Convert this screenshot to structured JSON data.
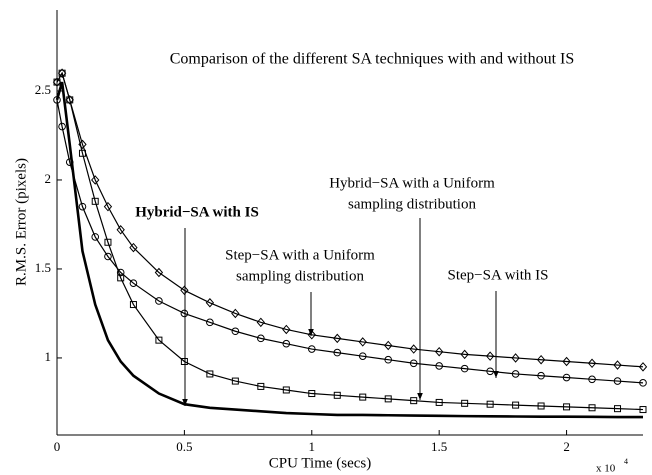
{
  "chart_data": {
    "type": "line",
    "title": "Comparison of the different SA techniques with and without IS",
    "x_label": "CPU Time (secs)",
    "y_label": "R.M.S. Error (pixels)",
    "x_multiplier": "x 10",
    "x_multiplier_exponent": "4",
    "x": [
      0,
      0.02,
      0.05,
      0.1,
      0.15,
      0.2,
      0.25,
      0.3,
      0.4,
      0.5,
      0.6,
      0.7,
      0.8,
      0.9,
      1.0,
      1.1,
      1.2,
      1.3,
      1.4,
      1.5,
      1.6,
      1.7,
      1.8,
      1.9,
      2.0,
      2.1,
      2.2,
      2.3
    ],
    "series": [
      {
        "name": "Hybrid−SA with IS",
        "color": "#000000",
        "marker": "none",
        "width": 2.6,
        "values": [
          2.45,
          2.55,
          2.2,
          1.6,
          1.3,
          1.1,
          0.98,
          0.9,
          0.8,
          0.74,
          0.72,
          0.71,
          0.7,
          0.69,
          0.685,
          0.68,
          0.68,
          0.678,
          0.676,
          0.675,
          0.673,
          0.672,
          0.671,
          0.67,
          0.67,
          0.669,
          0.668,
          0.668
        ]
      },
      {
        "name": "Step−SA with a Uniform sampling distribution",
        "color": "#000000",
        "marker": "diamond",
        "width": 1.2,
        "values": [
          2.55,
          2.6,
          2.45,
          2.2,
          2.0,
          1.85,
          1.72,
          1.62,
          1.48,
          1.38,
          1.31,
          1.25,
          1.2,
          1.16,
          1.13,
          1.11,
          1.09,
          1.07,
          1.05,
          1.035,
          1.02,
          1.01,
          1.0,
          0.99,
          0.98,
          0.97,
          0.96,
          0.95
        ]
      },
      {
        "name": "Step−SA with IS",
        "color": "#000000",
        "marker": "circle",
        "width": 1.2,
        "values": [
          2.45,
          2.3,
          2.1,
          1.85,
          1.68,
          1.57,
          1.48,
          1.42,
          1.32,
          1.25,
          1.2,
          1.15,
          1.11,
          1.08,
          1.05,
          1.03,
          1.01,
          0.99,
          0.97,
          0.955,
          0.94,
          0.925,
          0.91,
          0.9,
          0.89,
          0.88,
          0.87,
          0.86
        ]
      },
      {
        "name": "Hybrid−SA with a Uniform sampling distribution",
        "color": "#000000",
        "marker": "square",
        "width": 1.2,
        "values": [
          2.55,
          2.6,
          2.45,
          2.15,
          1.88,
          1.65,
          1.45,
          1.3,
          1.1,
          0.98,
          0.91,
          0.87,
          0.84,
          0.82,
          0.8,
          0.79,
          0.78,
          0.77,
          0.76,
          0.75,
          0.745,
          0.74,
          0.735,
          0.73,
          0.725,
          0.72,
          0.715,
          0.71
        ]
      }
    ],
    "annotations": [
      {
        "lines": [
          "Hybrid−SA with IS"
        ],
        "bold": true
      },
      {
        "lines": [
          "Step−SA with a Uniform",
          "sampling distribution"
        ],
        "bold": false
      },
      {
        "lines": [
          "Hybrid−SA with a Uniform",
          "sampling distribution"
        ],
        "bold": false
      },
      {
        "lines": [
          "Step−SA with IS"
        ],
        "bold": false
      }
    ],
    "xlim": [
      0,
      2.3
    ],
    "ylim": [
      0.567,
      2.955
    ],
    "xticks": [
      0,
      0.5,
      1,
      1.5,
      2
    ],
    "yticks": [
      1,
      1.5,
      2,
      2.5
    ],
    "grid": false
  }
}
